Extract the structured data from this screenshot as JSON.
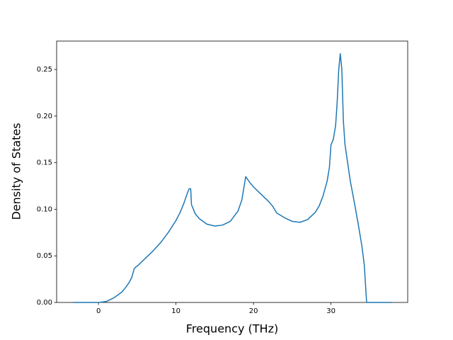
{
  "chart_data": {
    "type": "line",
    "xlabel": "Frequency (THz)",
    "ylabel": "Density of States",
    "x": [
      -3.3,
      0,
      1,
      2,
      3,
      3.5,
      4,
      4.3,
      4.6,
      4.8,
      5,
      5.5,
      6,
      7,
      8,
      9,
      10,
      10.5,
      11,
      11.5,
      11.7,
      11.9,
      12,
      12.5,
      13,
      14,
      15,
      16,
      17,
      18,
      18.5,
      18.8,
      19,
      19.5,
      20,
      21,
      22,
      22.5,
      23,
      24,
      25,
      26,
      27,
      28,
      28.5,
      29,
      29.5,
      29.8,
      30,
      30.3,
      30.6,
      30.8,
      31,
      31.2,
      31.4,
      31.6,
      31.8,
      32.5,
      33,
      33.5,
      34,
      34.3,
      34.6,
      37.8
    ],
    "series": [
      {
        "color": "#1f77b4",
        "values": [
          0,
          0,
          0.001,
          0.005,
          0.011,
          0.016,
          0.022,
          0.027,
          0.036,
          0.038,
          0.039,
          0.043,
          0.047,
          0.055,
          0.064,
          0.075,
          0.088,
          0.096,
          0.106,
          0.118,
          0.122,
          0.122,
          0.105,
          0.095,
          0.09,
          0.084,
          0.082,
          0.083,
          0.087,
          0.098,
          0.11,
          0.125,
          0.135,
          0.129,
          0.124,
          0.116,
          0.108,
          0.103,
          0.096,
          0.091,
          0.087,
          0.086,
          0.089,
          0.097,
          0.104,
          0.115,
          0.13,
          0.145,
          0.169,
          0.175,
          0.19,
          0.215,
          0.25,
          0.267,
          0.25,
          0.195,
          0.17,
          0.13,
          0.108,
          0.085,
          0.06,
          0.04,
          0,
          0
        ]
      }
    ],
    "xlim": [
      -5.4,
      39.9
    ],
    "ylim": [
      0,
      0.2805
    ],
    "xticks": [
      0,
      10,
      20,
      30
    ],
    "yticks": [
      {
        "value": 0,
        "label": "0.00"
      },
      0.05,
      {
        "value": 0.1,
        "label": "0.10"
      },
      0.15,
      {
        "value": 0.2,
        "label": "0.20"
      },
      0.25
    ],
    "grid": false
  }
}
